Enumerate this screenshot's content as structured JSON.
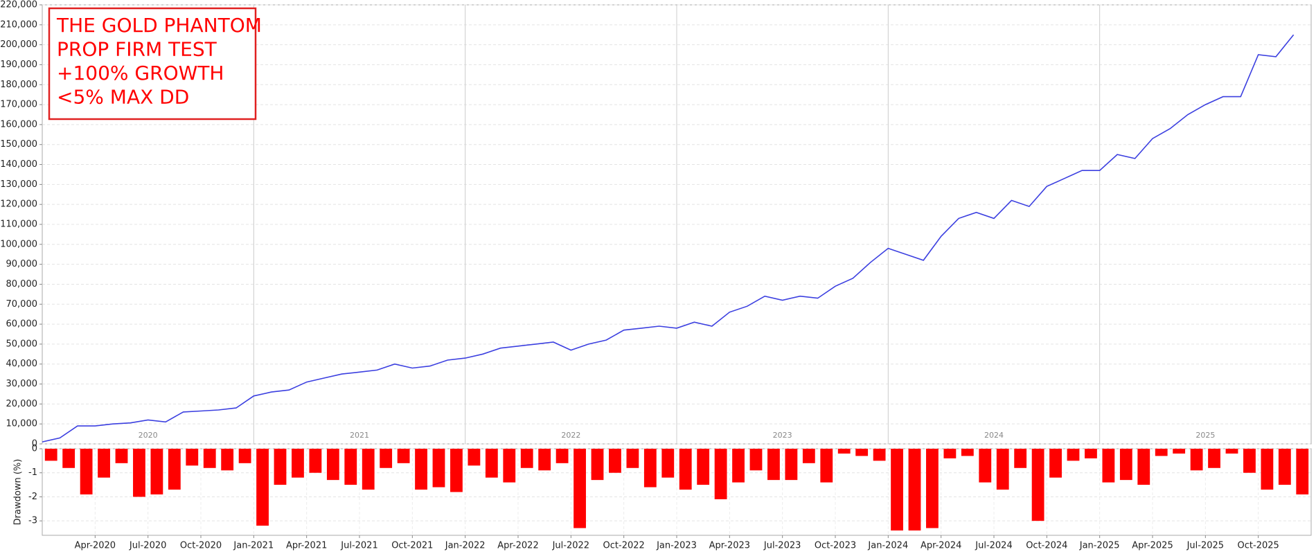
{
  "chart_data": [
    {
      "type": "line",
      "annotation": [
        "THE GOLD PHANTOM",
        "PROP FIRM TEST",
        "+100% GROWTH",
        "<5% MAX DD"
      ],
      "xlim": [
        "2020-01",
        "2026-01"
      ],
      "year_labels": [
        2020,
        2021,
        2022,
        2023,
        2024,
        2025
      ],
      "x": [
        "2020-01",
        "2020-02",
        "2020-03",
        "2020-04",
        "2020-05",
        "2020-06",
        "2020-07",
        "2020-08",
        "2020-09",
        "2020-10",
        "2020-11",
        "2020-12",
        "2021-01",
        "2021-02",
        "2021-03",
        "2021-04",
        "2021-05",
        "2021-06",
        "2021-07",
        "2021-08",
        "2021-09",
        "2021-10",
        "2021-11",
        "2021-12",
        "2022-01",
        "2022-02",
        "2022-03",
        "2022-04",
        "2022-05",
        "2022-06",
        "2022-07",
        "2022-08",
        "2022-09",
        "2022-10",
        "2022-11",
        "2022-12",
        "2023-01",
        "2023-02",
        "2023-03",
        "2023-04",
        "2023-05",
        "2023-06",
        "2023-07",
        "2023-08",
        "2023-09",
        "2023-10",
        "2023-11",
        "2023-12",
        "2024-01",
        "2024-02",
        "2024-03",
        "2024-04",
        "2024-05",
        "2024-06",
        "2024-07",
        "2024-08",
        "2024-09",
        "2024-10",
        "2024-11",
        "2024-12",
        "2025-01",
        "2025-02",
        "2025-03",
        "2025-04",
        "2025-05",
        "2025-06",
        "2025-07",
        "2025-08",
        "2025-09",
        "2025-10",
        "2025-11",
        "2025-12"
      ],
      "series": [
        {
          "color": "#3b3fe0",
          "values": [
            1000,
            3000,
            9000,
            9000,
            10000,
            10500,
            12000,
            11000,
            16000,
            16500,
            17000,
            18000,
            24000,
            26000,
            27000,
            31000,
            33000,
            35000,
            36000,
            37000,
            40000,
            38000,
            39000,
            42000,
            43000,
            45000,
            48000,
            49000,
            50000,
            51000,
            47000,
            50000,
            52000,
            57000,
            58000,
            59000,
            58000,
            61000,
            59000,
            66000,
            69000,
            74000,
            72000,
            74000,
            73000,
            79000,
            83000,
            91000,
            98000,
            95000,
            92000,
            104000,
            113000,
            116000,
            113000,
            122000,
            119000,
            129000,
            133000,
            137000,
            137000,
            145000,
            143000,
            153000,
            158000,
            165000,
            170000,
            174000,
            174000,
            195000,
            194000,
            205000
          ]
        }
      ],
      "ylim": [
        0,
        220000
      ],
      "yticks": [
        0,
        {
          "value": 10000,
          "label": "10,000"
        },
        {
          "value": 20000,
          "label": "20,000"
        },
        {
          "value": 30000,
          "label": "30,000"
        },
        {
          "value": 40000,
          "label": "40,000"
        },
        {
          "value": 50000,
          "label": "50,000"
        },
        {
          "value": 60000,
          "label": "60,000"
        },
        {
          "value": 70000,
          "label": "70,000"
        },
        {
          "value": 80000,
          "label": "80,000"
        },
        {
          "value": 90000,
          "label": "90,000"
        },
        {
          "value": 100000,
          "label": "100,000"
        },
        {
          "value": 110000,
          "label": "110,000"
        },
        {
          "value": 120000,
          "label": "120,000"
        },
        {
          "value": 130000,
          "label": "130,000"
        },
        {
          "value": 140000,
          "label": "140,000"
        },
        {
          "value": 150000,
          "label": "150,000"
        },
        {
          "value": 160000,
          "label": "160,000"
        },
        {
          "value": 170000,
          "label": "170,000"
        },
        {
          "value": 180000,
          "label": "180,000"
        },
        {
          "value": 190000,
          "label": "190,000"
        },
        {
          "value": 200000,
          "label": "200,000"
        },
        {
          "value": 210000,
          "label": "210,000"
        },
        {
          "value": 220000,
          "label": "220,000"
        }
      ],
      "grid": true
    },
    {
      "type": "bar",
      "ylabel": "Drawdown (%)",
      "xlim": [
        "2020-01",
        "2026-01"
      ],
      "x": [
        "2020-01",
        "2020-02",
        "2020-03",
        "2020-04",
        "2020-05",
        "2020-06",
        "2020-07",
        "2020-08",
        "2020-09",
        "2020-10",
        "2020-11",
        "2020-12",
        "2021-01",
        "2021-02",
        "2021-03",
        "2021-04",
        "2021-05",
        "2021-06",
        "2021-07",
        "2021-08",
        "2021-09",
        "2021-10",
        "2021-11",
        "2021-12",
        "2022-01",
        "2022-02",
        "2022-03",
        "2022-04",
        "2022-05",
        "2022-06",
        "2022-07",
        "2022-08",
        "2022-09",
        "2022-10",
        "2022-11",
        "2022-12",
        "2023-01",
        "2023-02",
        "2023-03",
        "2023-04",
        "2023-05",
        "2023-06",
        "2023-07",
        "2023-08",
        "2023-09",
        "2023-10",
        "2023-11",
        "2023-12",
        "2024-01",
        "2024-02",
        "2024-03",
        "2024-04",
        "2024-05",
        "2024-06",
        "2024-07",
        "2024-08",
        "2024-09",
        "2024-10",
        "2024-11",
        "2024-12",
        "2025-01",
        "2025-02",
        "2025-03",
        "2025-04",
        "2025-05",
        "2025-06",
        "2025-07",
        "2025-08",
        "2025-09",
        "2025-10",
        "2025-11",
        "2025-12"
      ],
      "color": "#ff0000",
      "values": [
        -0.5,
        -0.8,
        -1.9,
        -1.2,
        -0.6,
        -2.0,
        -1.9,
        -1.7,
        -0.7,
        -0.8,
        -0.9,
        -0.6,
        -3.2,
        -1.5,
        -1.2,
        -1.0,
        -1.3,
        -1.5,
        -1.7,
        -0.8,
        -0.6,
        -1.7,
        -1.6,
        -1.8,
        -0.7,
        -1.2,
        -1.4,
        -0.8,
        -0.9,
        -0.6,
        -3.3,
        -1.3,
        -1.0,
        -0.8,
        -1.6,
        -1.2,
        -1.7,
        -1.5,
        -2.1,
        -1.4,
        -0.9,
        -1.3,
        -1.3,
        -0.6,
        -1.4,
        -0.2,
        -0.3,
        -0.5,
        -3.4,
        -3.4,
        -3.3,
        -0.4,
        -0.3,
        -1.4,
        -1.7,
        -0.8,
        -3.0,
        -1.2,
        -0.5,
        -0.4,
        -1.4,
        -1.3,
        -1.5,
        -0.3,
        -0.2,
        -0.9,
        -0.8,
        -0.2,
        -1.0,
        -1.7,
        -1.5,
        -1.9
      ],
      "ylim": [
        -3.6,
        0
      ],
      "yticks": [
        0,
        -1,
        -2,
        -3
      ],
      "xticks": [
        {
          "value": "2020-04",
          "label": "Apr-2020"
        },
        {
          "value": "2020-07",
          "label": "Jul-2020"
        },
        {
          "value": "2020-10",
          "label": "Oct-2020"
        },
        {
          "value": "2021-01",
          "label": "Jan-2021"
        },
        {
          "value": "2021-04",
          "label": "Apr-2021"
        },
        {
          "value": "2021-07",
          "label": "Jul-2021"
        },
        {
          "value": "2021-10",
          "label": "Oct-2021"
        },
        {
          "value": "2022-01",
          "label": "Jan-2022"
        },
        {
          "value": "2022-04",
          "label": "Apr-2022"
        },
        {
          "value": "2022-07",
          "label": "Jul-2022"
        },
        {
          "value": "2022-10",
          "label": "Oct-2022"
        },
        {
          "value": "2023-01",
          "label": "Jan-2023"
        },
        {
          "value": "2023-04",
          "label": "Apr-2023"
        },
        {
          "value": "2023-07",
          "label": "Jul-2023"
        },
        {
          "value": "2023-10",
          "label": "Oct-2023"
        },
        {
          "value": "2024-01",
          "label": "Jan-2024"
        },
        {
          "value": "2024-04",
          "label": "Apr-2024"
        },
        {
          "value": "2024-07",
          "label": "Jul-2024"
        },
        {
          "value": "2024-10",
          "label": "Oct-2024"
        },
        {
          "value": "2025-01",
          "label": "Jan-2025"
        },
        {
          "value": "2025-04",
          "label": "Apr-2025"
        },
        {
          "value": "2025-07",
          "label": "Jul-2025"
        },
        {
          "value": "2025-10",
          "label": "Oct-2025"
        }
      ],
      "grid": true
    }
  ]
}
